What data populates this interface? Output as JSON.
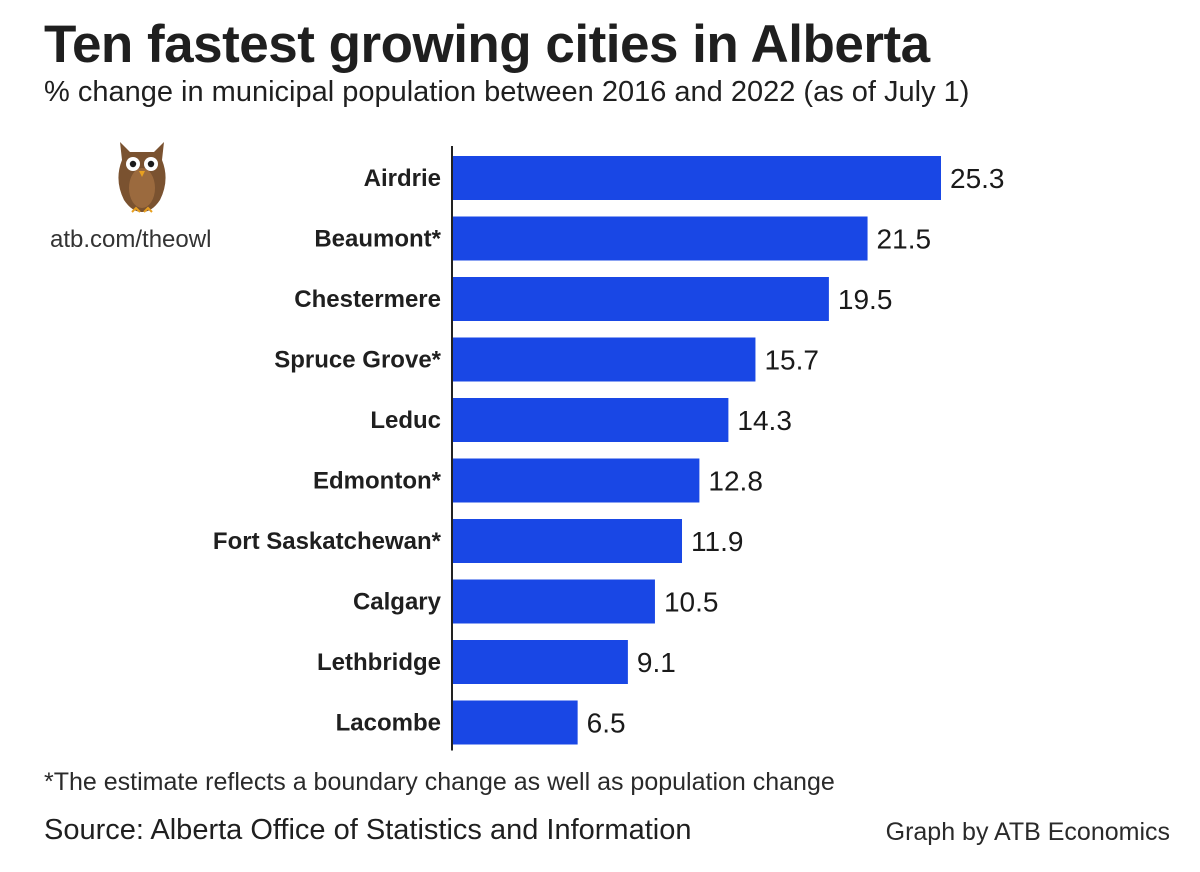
{
  "header": {
    "title": "Ten fastest growing cities in Alberta",
    "subtitle": "% change in municipal population between 2016 and 2022 (as of July 1)"
  },
  "branding": {
    "logo_icon": "owl-icon",
    "url": "atb.com/theowl"
  },
  "chart_data": {
    "type": "bar",
    "orientation": "horizontal",
    "categories": [
      "Airdrie",
      "Beaumont*",
      "Chestermere",
      "Spruce Grove*",
      "Leduc",
      "Edmonton*",
      "Fort Saskatchewan*",
      "Calgary",
      "Lethbridge",
      "Lacombe"
    ],
    "values": [
      25.3,
      21.5,
      19.5,
      15.7,
      14.3,
      12.8,
      11.9,
      10.5,
      9.1,
      6.5
    ],
    "data_labels": [
      "25.3",
      "21.5",
      "19.5",
      "15.7",
      "14.3",
      "12.8",
      "11.9",
      "10.5",
      "9.1",
      "6.5"
    ],
    "xlim": [
      0,
      25.3
    ],
    "bar_color": "#1947e5",
    "grid": false,
    "legend": "none"
  },
  "footer": {
    "footnote": "*The estimate reflects a boundary change as well as population change",
    "source": "Source: Alberta Office of Statistics and Information",
    "credit": "Graph by ATB Economics"
  }
}
